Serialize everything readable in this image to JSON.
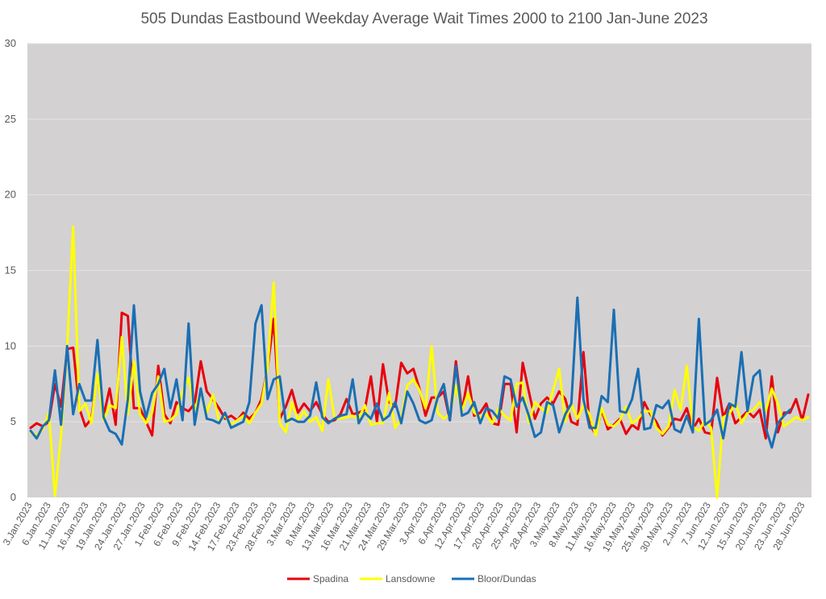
{
  "chart_data": {
    "type": "line",
    "title": "505 Dundas Eastbound Weekday Average Wait Times 2000 to 2100 Jan-June 2023",
    "xlabel": "",
    "ylabel": "",
    "ylim": [
      0,
      30
    ],
    "yticks": [
      "0",
      "5",
      "10",
      "15",
      "20",
      "25",
      "30"
    ],
    "grid": true,
    "legend_position": "bottom",
    "plot_background": "#d3d1d2",
    "x_tick_labels": [
      "3.Jan.2023",
      "6.Jan.2023",
      "11.Jan.2023",
      "16.Jan.2023",
      "19.Jan.2023",
      "24.Jan.2023",
      "27.Jan.2023",
      "1.Feb.2023",
      "6.Feb.2023",
      "9.Feb.2023",
      "14.Feb.2023",
      "17.Feb.2023",
      "23.Feb.2023",
      "28.Feb.2023",
      "3.Mar.2023",
      "8.Mar.2023",
      "13.Mar.2023",
      "16.Mar.2023",
      "21.Mar.2023",
      "24.Mar.2023",
      "29.Mar.2023",
      "3.Apr.2023",
      "6.Apr.2023",
      "12.Apr.2023",
      "17.Apr.2023",
      "20.Apr.2023",
      "25.Apr.2023",
      "28.Apr.2023",
      "3.May.2023",
      "8.May.2023",
      "11.May.2023",
      "16.May.2023",
      "19.May.2023",
      "25.May.2023",
      "30.May.2023",
      "2.Jun.2023",
      "7.Jun.2023",
      "12.Jun.2023",
      "15.Jun.2023",
      "20.Jun.2023",
      "23.Jun.2023",
      "28.Jun.2023"
    ],
    "series": [
      {
        "name": "Spadina",
        "color": "#e8000c",
        "values": [
          4.6,
          4.9,
          4.7,
          5.0,
          7.5,
          6.0,
          9.8,
          9.9,
          5.9,
          4.7,
          5.2,
          8.1,
          5.4,
          7.2,
          4.8,
          12.2,
          12.0,
          5.9,
          5.9,
          5.0,
          4.1,
          8.7,
          5.5,
          4.9,
          6.3,
          5.9,
          5.7,
          6.2,
          9.0,
          7.0,
          6.5,
          5.9,
          5.2,
          5.4,
          5.1,
          5.6,
          5.2,
          5.6,
          6.5,
          8.5,
          11.8,
          5.2,
          6.0,
          7.1,
          5.6,
          6.2,
          5.7,
          6.3,
          5.5,
          5.0,
          5.1,
          5.5,
          6.5,
          5.5,
          5.6,
          5.8,
          8.0,
          5.0,
          8.8,
          6.3,
          6.0,
          8.9,
          8.2,
          8.5,
          7.2,
          5.4,
          6.6,
          6.6,
          7.0,
          5.1,
          9.0,
          5.7,
          8.0,
          5.4,
          5.6,
          6.2,
          4.9,
          4.8,
          7.5,
          7.5,
          4.3,
          8.9,
          7.0,
          5.2,
          6.2,
          6.6,
          6.2,
          7.0,
          6.5,
          5.0,
          4.8,
          9.6,
          4.8,
          4.2,
          5.8,
          4.5,
          4.8,
          5.2,
          4.2,
          4.8,
          4.5,
          6.3,
          5.5,
          5.0,
          4.1,
          4.6,
          5.2,
          5.1,
          5.9,
          4.5,
          5.2,
          4.3,
          4.2,
          7.9,
          5.3,
          6.2,
          4.9,
          5.3,
          5.7,
          5.3,
          5.8,
          3.9,
          8.0,
          4.3,
          5.6,
          5.6,
          6.5,
          5.1,
          6.8
        ],
        "y_fixed_label": false
      },
      {
        "name": "Lansdowne",
        "color": "#ffff00",
        "values": [
          4.3,
          4.1,
          4.5,
          5.6,
          0.1,
          4.1,
          9.9,
          17.9,
          5.7,
          6.2,
          4.9,
          8.2,
          5.1,
          6.1,
          5.9,
          10.6,
          5.5,
          9.0,
          5.5,
          4.9,
          5.6,
          8.0,
          5.0,
          5.1,
          5.5,
          7.0,
          7.9,
          5.8,
          7.0,
          5.6,
          6.8,
          5.1,
          5.4,
          4.8,
          5.1,
          5.4,
          4.9,
          5.6,
          6.2,
          8.5,
          14.2,
          4.9,
          4.3,
          6.3,
          5.1,
          5.7,
          5.0,
          5.3,
          4.4,
          7.8,
          5.3,
          5.2,
          5.3,
          5.4,
          5.2,
          6.1,
          4.8,
          4.9,
          4.9,
          6.9,
          4.6,
          5.2,
          7.4,
          7.8,
          7.1,
          5.9,
          10.0,
          5.6,
          5.2,
          5.5,
          7.4,
          5.7,
          6.9,
          5.6,
          5.3,
          5.5,
          4.9,
          5.9,
          5.4,
          5.1,
          7.5,
          7.6,
          4.9,
          6.3,
          5.9,
          5.6,
          7.1,
          8.5,
          5.0,
          6.2,
          5.2,
          6.1,
          5.5,
          4.1,
          5.9,
          4.8,
          4.7,
          5.1,
          6.0,
          4.9,
          5.2,
          5.7,
          5.7,
          4.6,
          4.2,
          4.7,
          7.1,
          5.8,
          8.7,
          4.7,
          4.4,
          5.1,
          4.6,
          0.0,
          5.3,
          5.5,
          6.3,
          4.9,
          5.6,
          5.8,
          6.3,
          5.7,
          7.2,
          6.2,
          4.7,
          5.0,
          5.3,
          5.1,
          5.3
        ],
        "y_fixed_label": false
      },
      {
        "name": "Bloor/Dundas",
        "color": "#1a6fb4",
        "values": [
          4.4,
          3.9,
          4.7,
          5.1,
          8.4,
          4.8,
          10.0,
          5.5,
          7.5,
          6.4,
          6.4,
          10.4,
          5.3,
          4.4,
          4.2,
          3.5,
          6.5,
          12.7,
          7.0,
          5.3,
          6.9,
          7.5,
          8.5,
          5.9,
          7.8,
          5.1,
          11.5,
          4.8,
          7.2,
          5.2,
          5.1,
          4.9,
          5.6,
          4.6,
          4.8,
          5.0,
          6.3,
          11.5,
          12.7,
          6.5,
          7.8,
          8.0,
          5.0,
          5.2,
          5.0,
          5.0,
          5.4,
          7.6,
          5.3,
          4.9,
          5.2,
          5.4,
          5.5,
          7.8,
          4.9,
          5.6,
          5.2,
          6.2,
          5.1,
          5.4,
          6.3,
          4.9,
          7.0,
          6.2,
          5.1,
          4.9,
          5.1,
          6.6,
          7.5,
          5.1,
          8.7,
          5.4,
          5.6,
          6.3,
          4.9,
          5.9,
          5.7,
          5.2,
          8.0,
          7.8,
          6.0,
          6.6,
          5.4,
          4.0,
          4.3,
          6.3,
          6.1,
          4.3,
          5.5,
          6.2,
          13.2,
          6.5,
          4.6,
          4.6,
          6.7,
          6.3,
          12.4,
          5.7,
          5.6,
          6.5,
          8.5,
          4.5,
          4.6,
          6.1,
          5.9,
          6.4,
          4.5,
          4.3,
          5.4,
          4.3,
          11.8,
          4.8,
          5.1,
          5.8,
          3.9,
          6.2,
          6.0,
          9.6,
          5.7,
          8.0,
          8.4,
          4.6,
          3.3,
          4.9,
          5.4,
          5.8
        ],
        "y_fixed_label": false
      }
    ]
  }
}
